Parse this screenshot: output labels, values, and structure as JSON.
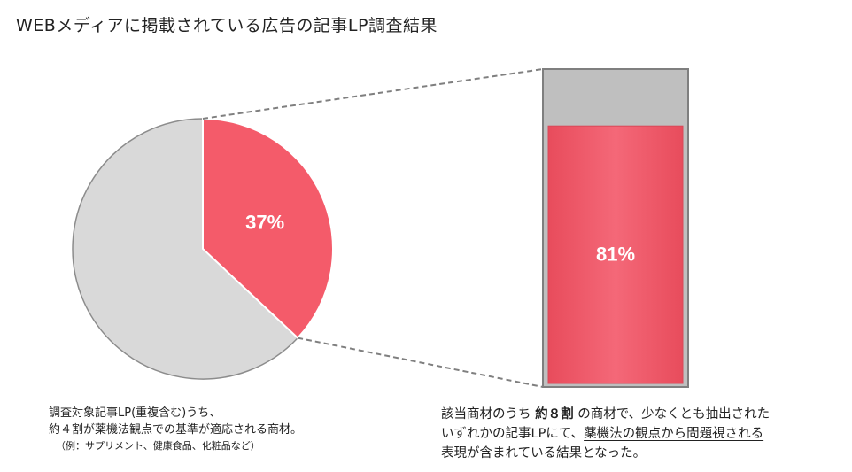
{
  "title": "WEBメディアに掲載されている広告の記事LP調査結果",
  "chart_data": [
    {
      "type": "pie",
      "slices": [
        {
          "label": "37%",
          "value": 37,
          "color": "#f45b6a"
        },
        {
          "label": "",
          "value": 63,
          "color": "#d9d9d9"
        }
      ]
    },
    {
      "type": "bar",
      "stacked_percent": true,
      "values": [
        {
          "label": "81%",
          "value": 81,
          "color": "#f45b6a"
        }
      ],
      "remainder_color": "#bfbfbf"
    }
  ],
  "left_note": {
    "line1": "調査対象記事LP(重複含む)うち、",
    "line2": "約４割が薬機法観点での基準が適応される商材。",
    "line3": "（例：サプリメント、健康食品、化粧品など）"
  },
  "right_note": {
    "p1": "該当商材のうち ",
    "p1_bold": "約８割",
    "p1_rest": " の商材で、少なくとも抽出された",
    "p2": "いずれかの記事LPにて、",
    "p2_u": "薬機法の観点から問題視される",
    "p3_u": "表現が含まれている",
    "p3_rest": "結果となった。"
  }
}
